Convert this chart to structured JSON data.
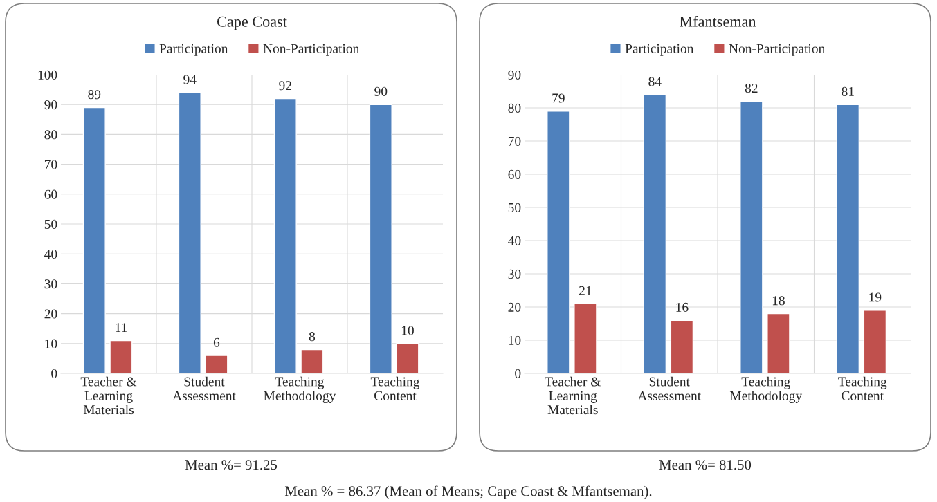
{
  "chart_data": [
    {
      "type": "bar",
      "title": "Cape Coast",
      "categories": [
        "Teacher &\nLearning\nMaterials",
        "Student\nAssessment",
        "Teaching\nMethodology",
        "Teaching\nContent"
      ],
      "series": [
        {
          "name": "Participation",
          "color": "#4f81bd",
          "values": [
            89,
            94,
            92,
            90
          ]
        },
        {
          "name": "Non-Participation",
          "color": "#c0504d",
          "values": [
            11,
            6,
            8,
            10
          ]
        }
      ],
      "ylim": [
        0,
        100
      ],
      "yticks": [
        0,
        10,
        20,
        30,
        40,
        50,
        60,
        70,
        80,
        90,
        100
      ],
      "grid": true,
      "legend": "top",
      "data_labels": true,
      "annotations": [
        "Mean %= 91.25",
        "Mean % = 86.37 (Mean of Means; Cape Coast & Mfantseman)."
      ]
    },
    {
      "type": "bar",
      "title": "Mfantseman",
      "categories": [
        "Teacher &\nLearning\nMaterials",
        "Student\nAssessment",
        "Teaching\nMethodology",
        "Teaching\nContent"
      ],
      "series": [
        {
          "name": "Participation",
          "color": "#4f81bd",
          "values": [
            79,
            84,
            82,
            81
          ]
        },
        {
          "name": "Non-Participation",
          "color": "#c0504d",
          "values": [
            21,
            16,
            18,
            19
          ]
        }
      ],
      "ylim": [
        0,
        90
      ],
      "yticks": [
        0,
        10,
        20,
        30,
        40,
        50,
        60,
        70,
        80,
        90
      ],
      "grid": true,
      "legend": "top",
      "data_labels": true,
      "annotations": [
        "Mean %= 81.50"
      ]
    }
  ]
}
